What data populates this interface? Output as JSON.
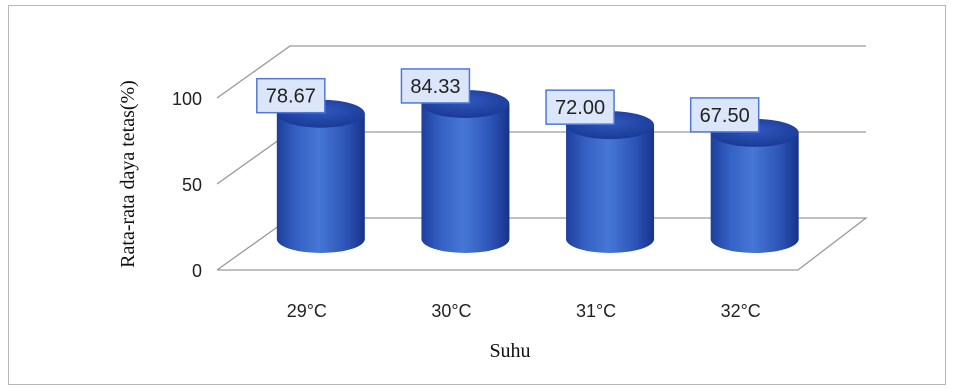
{
  "chart_data": {
    "type": "bar",
    "style": "3d-cylinder",
    "categories": [
      "29°C",
      "30°C",
      "31°C",
      "32°C"
    ],
    "values": [
      78.67,
      84.33,
      72.0,
      67.5
    ],
    "data_labels": [
      "78.67",
      "84.33",
      "72.00",
      "67.50"
    ],
    "xlabel": "Suhu",
    "ylabel": "Rata-rata daya tetas(%)",
    "yticks": [
      0,
      50,
      100
    ],
    "ytick_labels": [
      "0",
      "50",
      "100"
    ],
    "ylim": [
      0,
      100
    ],
    "grid": true,
    "legend": "none",
    "colors": {
      "bar": "#3c64bf",
      "bar_dark": "#16338a",
      "bar_light": "#5a86db",
      "label_fill": "#dbe6fb",
      "label_border": "#4f78d8",
      "grid": "#9a9a9a"
    }
  }
}
